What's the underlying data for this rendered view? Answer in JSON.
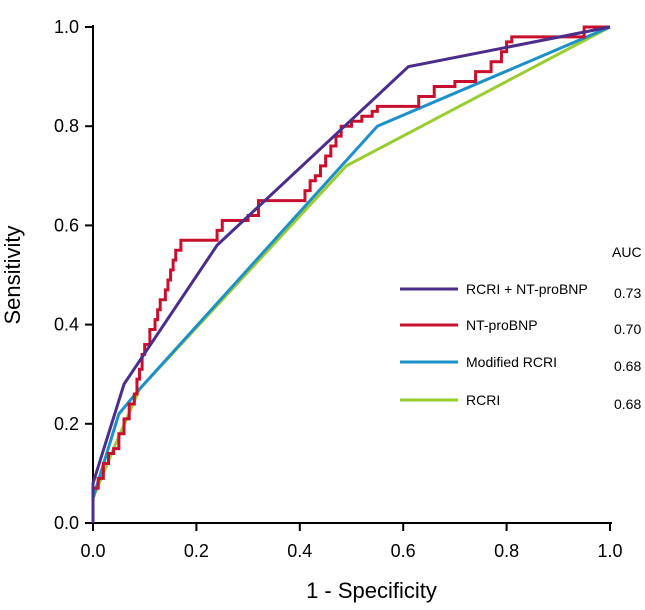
{
  "chart_data": {
    "type": "line",
    "title": "",
    "xlabel": "1 - Specificity",
    "ylabel": "Sensitivity",
    "xlim": [
      0,
      1
    ],
    "ylim": [
      0,
      1
    ],
    "xticks": [
      "0.0",
      "0.2",
      "0.4",
      "0.6",
      "0.8",
      "1.0"
    ],
    "yticks": [
      "0.0",
      "0.2",
      "0.4",
      "0.6",
      "0.8",
      "1.0"
    ],
    "grid": false,
    "legend_position": "right",
    "auc_header": "AUC",
    "series": [
      {
        "name": "RCRI + NT-proBNP",
        "auc": "0.73",
        "color": "#4B2E8A",
        "step": false,
        "points": [
          [
            0,
            0
          ],
          [
            0,
            0.08
          ],
          [
            0.06,
            0.28
          ],
          [
            0.24,
            0.56
          ],
          [
            0.61,
            0.92
          ],
          [
            1.0,
            1.0
          ]
        ]
      },
      {
        "name": "NT-proBNP",
        "auc": "0.70",
        "color": "#C8102E",
        "step": true,
        "points": [
          [
            0,
            0
          ],
          [
            0,
            0.07
          ],
          [
            0.01,
            0.09
          ],
          [
            0.02,
            0.12
          ],
          [
            0.03,
            0.14
          ],
          [
            0.04,
            0.15
          ],
          [
            0.05,
            0.18
          ],
          [
            0.06,
            0.21
          ],
          [
            0.07,
            0.24
          ],
          [
            0.08,
            0.26
          ],
          [
            0.085,
            0.29
          ],
          [
            0.09,
            0.31
          ],
          [
            0.095,
            0.34
          ],
          [
            0.1,
            0.36
          ],
          [
            0.11,
            0.39
          ],
          [
            0.12,
            0.41
          ],
          [
            0.125,
            0.43
          ],
          [
            0.13,
            0.45
          ],
          [
            0.14,
            0.47
          ],
          [
            0.145,
            0.49
          ],
          [
            0.15,
            0.51
          ],
          [
            0.155,
            0.53
          ],
          [
            0.16,
            0.55
          ],
          [
            0.17,
            0.57
          ],
          [
            0.24,
            0.59
          ],
          [
            0.25,
            0.61
          ],
          [
            0.3,
            0.62
          ],
          [
            0.32,
            0.65
          ],
          [
            0.4,
            0.65
          ],
          [
            0.41,
            0.67
          ],
          [
            0.42,
            0.69
          ],
          [
            0.43,
            0.7
          ],
          [
            0.44,
            0.72
          ],
          [
            0.45,
            0.74
          ],
          [
            0.46,
            0.76
          ],
          [
            0.47,
            0.78
          ],
          [
            0.48,
            0.8
          ],
          [
            0.5,
            0.81
          ],
          [
            0.52,
            0.82
          ],
          [
            0.54,
            0.83
          ],
          [
            0.55,
            0.84
          ],
          [
            0.63,
            0.86
          ],
          [
            0.66,
            0.88
          ],
          [
            0.7,
            0.89
          ],
          [
            0.74,
            0.91
          ],
          [
            0.77,
            0.93
          ],
          [
            0.79,
            0.95
          ],
          [
            0.8,
            0.97
          ],
          [
            0.81,
            0.98
          ],
          [
            0.95,
            1.0
          ],
          [
            1.0,
            1.0
          ]
        ]
      },
      {
        "name": "Modified RCRI",
        "auc": "0.68",
        "color": "#1E90C8",
        "step": false,
        "points": [
          [
            0,
            0
          ],
          [
            0,
            0.05
          ],
          [
            0.05,
            0.22
          ],
          [
            0.09,
            0.27
          ],
          [
            0.55,
            0.8
          ],
          [
            1.0,
            1.0
          ]
        ]
      },
      {
        "name": "RCRI",
        "auc": "0.68",
        "color": "#9ACD32",
        "step": false,
        "points": [
          [
            0,
            0
          ],
          [
            0,
            0.05
          ],
          [
            0.04,
            0.15
          ],
          [
            0.09,
            0.27
          ],
          [
            0.49,
            0.72
          ],
          [
            1.0,
            1.0
          ]
        ]
      }
    ]
  }
}
